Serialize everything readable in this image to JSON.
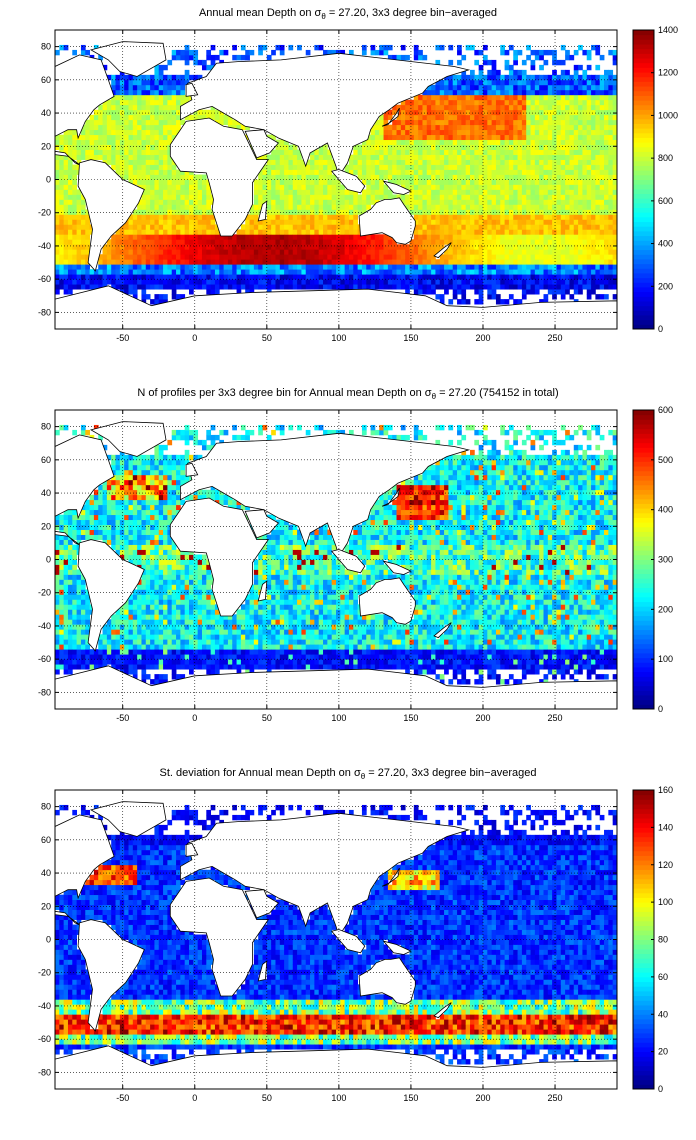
{
  "panels": [
    {
      "title_pre": "Annual mean Depth on σ",
      "title_sub": "θ",
      "title_post": " = 27.20, 3x3 degree bin−averaged",
      "cmin": 0,
      "cmax": 1400,
      "cticks": [
        "0",
        "200",
        "400",
        "600",
        "800",
        "1000",
        "1200",
        "1400"
      ],
      "field": "depth"
    },
    {
      "title_pre": "N of profiles per 3x3 degree bin for Annual mean Depth on σ",
      "title_sub": "θ",
      "title_post": " = 27.20 (754152 in total)",
      "cmin": 0,
      "cmax": 600,
      "cticks": [
        "0",
        "100",
        "200",
        "300",
        "400",
        "500",
        "600"
      ],
      "field": "count"
    },
    {
      "title_pre": "St. deviation for Annual mean Depth on σ",
      "title_sub": "θ",
      "title_post": " = 27.20, 3x3 degree bin−averaged",
      "cmin": 0,
      "cmax": 160,
      "cticks": [
        "0",
        "20",
        "40",
        "60",
        "80",
        "100",
        "120",
        "140",
        "160"
      ],
      "field": "std"
    }
  ],
  "axes": {
    "xticks": [
      "-50",
      "0",
      "50",
      "100",
      "150",
      "200",
      "250"
    ],
    "yticks": [
      "80",
      "60",
      "40",
      "20",
      "0",
      "-20",
      "-40",
      "-60",
      "-80"
    ],
    "xlim": [
      -97,
      293
    ],
    "ylim": [
      -90,
      90
    ]
  },
  "colormap": "jet"
}
